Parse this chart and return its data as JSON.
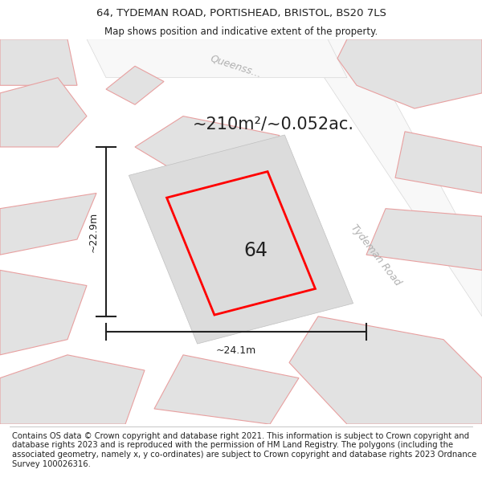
{
  "title_line1": "64, TYDEMAN ROAD, PORTISHEAD, BRISTOL, BS20 7LS",
  "title_line2": "Map shows position and indicative extent of the property.",
  "footer_text": "Contains OS data © Crown copyright and database right 2021. This information is subject to Crown copyright and database rights 2023 and is reproduced with the permission of HM Land Registry. The polygons (including the associated geometry, namely x, y co-ordinates) are subject to Crown copyright and database rights 2023 Ordnance Survey 100026316.",
  "area_text": "~210m²/~0.052ac.",
  "number_label": "64",
  "width_label": "~24.1m",
  "height_label": "~22.9m",
  "road_label_1": "Tydeman Road",
  "road_label_2": "Queenss…",
  "map_bg": "#f0f0f0",
  "plot_bg": "#e0e0e0",
  "plot_edge_color": "#ff0000",
  "plot_edge_width": 2.0,
  "nearby_fill": "#e2e2e2",
  "nearby_edge": "#e8a0a0",
  "nearby_edge_width": 0.8,
  "road_color": "#ffffff",
  "dim_line_color": "#222222",
  "title_fontsize": 9.5,
  "subtitle_fontsize": 8.5,
  "footer_fontsize": 7.2,
  "area_fontsize": 15,
  "number_fontsize": 17,
  "dim_fontsize": 9,
  "road_fontsize": 9,
  "road_color_text": "#b0b0b0",
  "text_color": "#222222"
}
